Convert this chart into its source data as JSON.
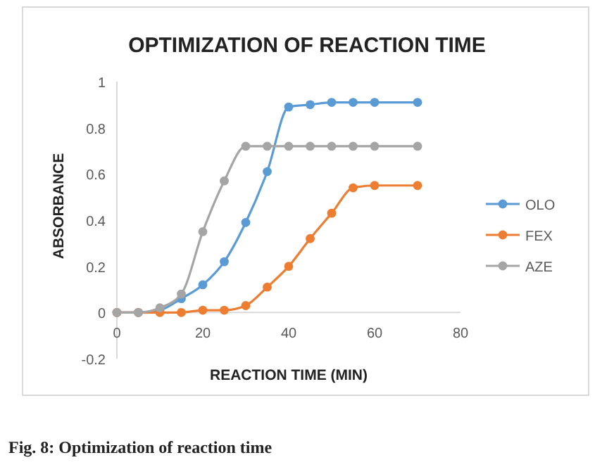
{
  "chart_data": {
    "type": "line",
    "title": "OPTIMIZATION OF REACTION TIME",
    "xlabel": "REACTION TIME (MIN)",
    "ylabel": "ABSORBANCE",
    "x": [
      0,
      5,
      10,
      15,
      20,
      25,
      30,
      35,
      40,
      45,
      50,
      55,
      60,
      70
    ],
    "series": [
      {
        "name": "OLO",
        "color": "#5b9bd5",
        "values": [
          0,
          0,
          0.01,
          0.06,
          0.12,
          0.22,
          0.39,
          0.61,
          0.89,
          0.9,
          0.91,
          0.91,
          0.91,
          0.91
        ]
      },
      {
        "name": "FEX",
        "color": "#ed7d31",
        "values": [
          0,
          0,
          0,
          0,
          0.01,
          0.01,
          0.03,
          0.11,
          0.2,
          0.32,
          0.43,
          0.54,
          0.55,
          0.55
        ]
      },
      {
        "name": "AZE",
        "color": "#a5a5a5",
        "values": [
          0,
          0,
          0.02,
          0.08,
          0.35,
          0.57,
          0.72,
          0.72,
          0.72,
          0.72,
          0.72,
          0.72,
          0.72,
          0.72
        ]
      }
    ],
    "xlim": [
      0,
      80
    ],
    "xticks": [
      0,
      20,
      40,
      60,
      80
    ],
    "ylim": [
      -0.2,
      1
    ],
    "yticks": [
      -0.2,
      0,
      0.2,
      0.4,
      0.6,
      0.8,
      1
    ],
    "grid": false,
    "legend": "right",
    "marker": "circle",
    "line_style": "solid",
    "annotations": [
      "Fig. 8: Optimization of reaction time"
    ]
  }
}
